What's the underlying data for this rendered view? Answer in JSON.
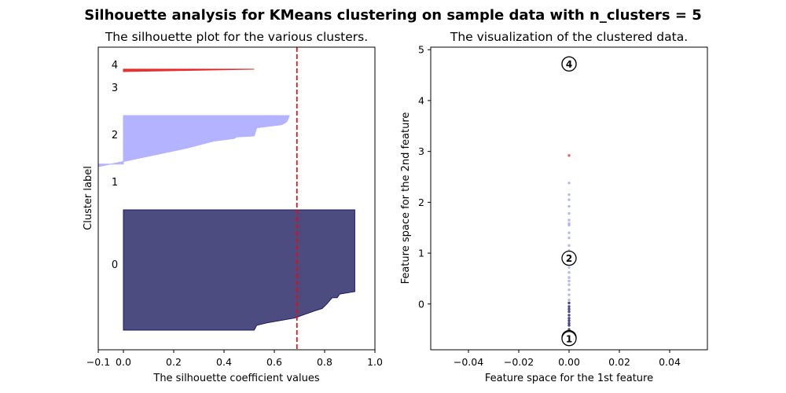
{
  "suptitle": "Silhouette analysis for KMeans clustering on sample data with n_clusters = 5",
  "chart_data": [
    {
      "type": "area",
      "title": "The silhouette plot for the various clusters.",
      "xlabel": "The silhouette coefficient values",
      "ylabel": "Cluster label",
      "xlim": [
        -0.1,
        1.0
      ],
      "x_ticks": [
        "−0.1",
        "0.0",
        "0.2",
        "0.4",
        "0.6",
        "0.8",
        "1.0"
      ],
      "x_tick_values": [
        -0.1,
        0.0,
        0.2,
        0.4,
        0.6,
        0.8,
        1.0
      ],
      "average_silhouette_score": 0.69,
      "average_line_color": "#ff0000",
      "clusters": [
        {
          "label": "0",
          "color": "#1b1a5e",
          "silhouette_profile": [
            [
              0.92,
              1.0
            ],
            [
              0.92,
              0.32
            ],
            [
              0.86,
              0.3
            ],
            [
              0.85,
              0.27
            ],
            [
              0.83,
              0.27
            ],
            [
              0.81,
              0.22
            ],
            [
              0.79,
              0.18
            ],
            [
              0.76,
              0.16
            ],
            [
              0.68,
              0.1
            ],
            [
              0.57,
              0.06
            ],
            [
              0.53,
              0.04
            ],
            [
              0.52,
              0.0
            ],
            [
              0.33,
              0.0
            ],
            [
              0.0,
              0.0
            ]
          ]
        },
        {
          "label": "1",
          "color": "#4d4dd9",
          "silhouette_profile": []
        },
        {
          "label": "2",
          "color": "#b3b3ff",
          "silhouette_profile": [
            [
              0.66,
              1.0
            ],
            [
              0.65,
              0.88
            ],
            [
              0.63,
              0.82
            ],
            [
              0.53,
              0.76
            ],
            [
              0.52,
              0.6
            ],
            [
              0.45,
              0.58
            ],
            [
              0.44,
              0.55
            ],
            [
              0.36,
              0.5
            ],
            [
              0.25,
              0.36
            ],
            [
              0.0,
              0.1
            ],
            [
              -0.1,
              0.0
            ]
          ]
        },
        {
          "label": "3",
          "color": "#d44",
          "silhouette_profile": []
        },
        {
          "label": "4",
          "color": "#e82020",
          "silhouette_profile": [
            [
              0.52,
              1.0
            ],
            [
              0.0,
              1.0
            ],
            [
              0.0,
              0.0
            ]
          ]
        }
      ]
    },
    {
      "type": "scatter",
      "title": "The visualization of the clustered data.",
      "xlabel": "Feature space for the 1st feature",
      "ylabel": "Feature space for the 2nd feature",
      "xlim": [
        -0.055,
        0.055
      ],
      "ylim": [
        -0.9,
        5.05
      ],
      "x_ticks": [
        "−0.04",
        "−0.02",
        "0.00",
        "0.02",
        "0.04"
      ],
      "x_tick_values": [
        -0.04,
        -0.02,
        0.0,
        0.02,
        0.04
      ],
      "y_ticks": [
        "0",
        "1",
        "2",
        "3",
        "4",
        "5"
      ],
      "y_tick_values": [
        0,
        1,
        2,
        3,
        4,
        5
      ],
      "points": [
        {
          "x": 0.0,
          "y": 2.92,
          "c": "#e34a4a"
        },
        {
          "x": 0.0,
          "y": 2.38,
          "c": "#aaaaf5"
        },
        {
          "x": 0.0,
          "y": 2.15,
          "c": "#aaaaf5"
        },
        {
          "x": 0.0,
          "y": 2.05,
          "c": "#aaaaf5"
        },
        {
          "x": 0.0,
          "y": 1.92,
          "c": "#aaaaf5"
        },
        {
          "x": 0.0,
          "y": 1.78,
          "c": "#aaaaf5"
        },
        {
          "x": 0.0,
          "y": 1.65,
          "c": "#aaaaf5"
        },
        {
          "x": 0.0,
          "y": 1.58,
          "c": "#aaaaf5"
        },
        {
          "x": 0.0,
          "y": 1.55,
          "c": "#aaaaf5"
        },
        {
          "x": 0.0,
          "y": 1.4,
          "c": "#aaaaf5"
        },
        {
          "x": 0.0,
          "y": 1.3,
          "c": "#aaaaf5"
        },
        {
          "x": 0.0,
          "y": 1.15,
          "c": "#aaaaf5"
        },
        {
          "x": 0.0,
          "y": 1.05,
          "c": "#aaaaf5"
        },
        {
          "x": 0.0,
          "y": 0.72,
          "c": "#aaaaf5"
        },
        {
          "x": 0.0,
          "y": 0.62,
          "c": "#aaaaf5"
        },
        {
          "x": 0.0,
          "y": 0.52,
          "c": "#aaaaf5"
        },
        {
          "x": 0.0,
          "y": 0.45,
          "c": "#aaaaf5"
        },
        {
          "x": 0.0,
          "y": 0.38,
          "c": "#aaaaf5"
        },
        {
          "x": 0.0,
          "y": 0.28,
          "c": "#aaaaf5"
        },
        {
          "x": 0.0,
          "y": 0.18,
          "c": "#aaaaf5"
        },
        {
          "x": 0.0,
          "y": 0.08,
          "c": "#aaaaf5"
        },
        {
          "x": 0.0,
          "y": 0.02,
          "c": "#2a2a6e"
        },
        {
          "x": 0.0,
          "y": -0.05,
          "c": "#2a2a6e"
        },
        {
          "x": 0.0,
          "y": -0.1,
          "c": "#2a2a6e"
        },
        {
          "x": 0.0,
          "y": -0.15,
          "c": "#2a2a6e"
        },
        {
          "x": 0.0,
          "y": -0.22,
          "c": "#2a2a6e"
        },
        {
          "x": 0.0,
          "y": -0.28,
          "c": "#2a2a6e"
        },
        {
          "x": 0.0,
          "y": -0.33,
          "c": "#2a2a6e"
        },
        {
          "x": 0.0,
          "y": -0.38,
          "c": "#2a2a6e"
        },
        {
          "x": 0.0,
          "y": -0.42,
          "c": "#2a2a6e"
        },
        {
          "x": 0.0,
          "y": -0.5,
          "c": "#2a2a6e"
        },
        {
          "x": 0.0,
          "y": -0.58,
          "c": "#2a2a6e"
        },
        {
          "x": 0.0,
          "y": -0.62,
          "c": "#2a2a6e"
        },
        {
          "x": 0.0,
          "y": -0.66,
          "c": "#2a2a6e"
        },
        {
          "x": 0.0,
          "y": -0.7,
          "c": "#2a2a6e"
        },
        {
          "x": 0.0,
          "y": -0.74,
          "c": "#2a2a6e"
        }
      ],
      "centers": [
        {
          "label": "0",
          "x": 0.0,
          "y": -0.66
        },
        {
          "label": "1",
          "x": 0.0,
          "y": -0.68
        },
        {
          "label": "2",
          "x": 0.0,
          "y": 0.9
        },
        {
          "label": "3",
          "x": 0.0,
          "y": 4.72
        },
        {
          "label": "4",
          "x": 0.0,
          "y": 4.72
        }
      ]
    }
  ]
}
